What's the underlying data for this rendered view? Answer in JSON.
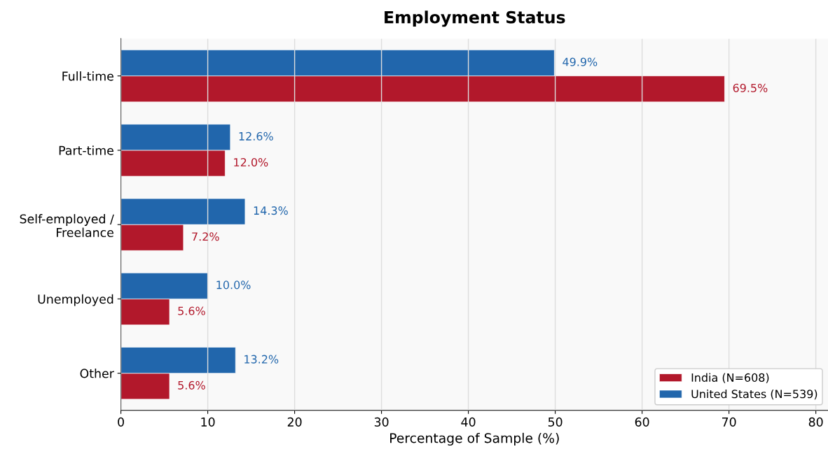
{
  "chart_data": {
    "type": "bar",
    "orientation": "horizontal",
    "title": "Employment Status",
    "xlabel": "Percentage of Sample (%)",
    "categories": [
      "Full-time",
      "Part-time",
      "Self-employed /\nFreelance",
      "Unemployed",
      "Other"
    ],
    "series": [
      {
        "name": "India (N=608)",
        "color": "#b2182b",
        "values": [
          69.5,
          12.0,
          7.2,
          5.6,
          5.6
        ],
        "value_labels": [
          "69.5%",
          "12.0%",
          "7.2%",
          "5.6%",
          "5.6%"
        ]
      },
      {
        "name": "United States (N=539)",
        "color": "#2166ac",
        "values": [
          49.9,
          12.6,
          14.3,
          10.0,
          13.2
        ],
        "value_labels": [
          "49.9%",
          "12.6%",
          "14.3%",
          "10.0%",
          "13.2%"
        ]
      }
    ],
    "xlim": [
      0,
      81.4
    ],
    "xticks": [
      0,
      10,
      20,
      30,
      40,
      50,
      60,
      70,
      80
    ],
    "grid": "x",
    "legend": "bottom right"
  }
}
